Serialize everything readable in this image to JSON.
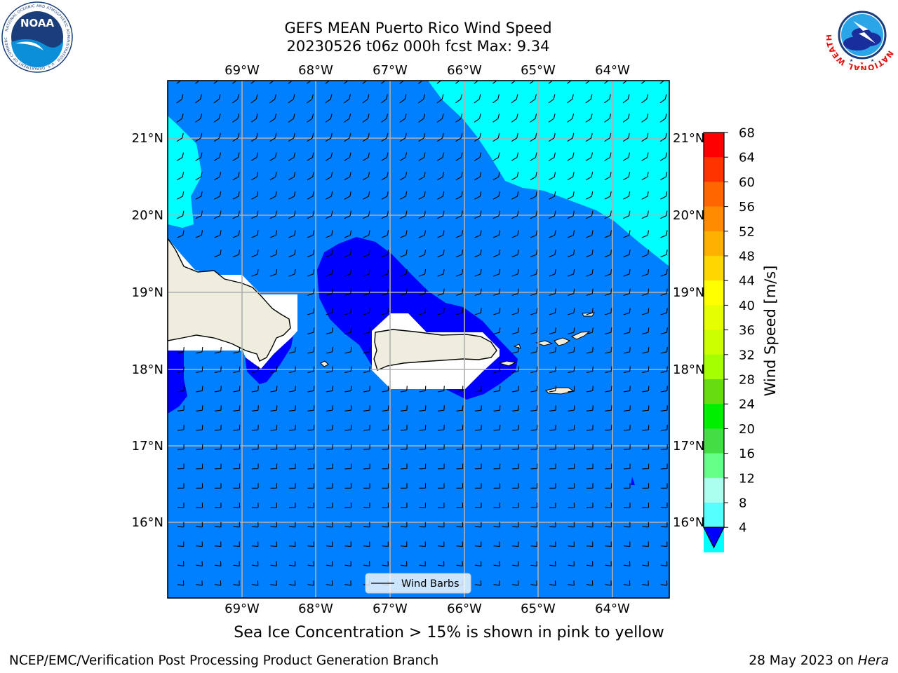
{
  "header": {
    "title_line1": "GEFS MEAN Puerto Rico Wind Speed",
    "title_line2": "20230526 t06z 000h fcst   Max: 9.34"
  },
  "logos": {
    "left": "NOAA",
    "left_ring_text": "NATIONAL OCEANIC AND ATMOSPHERIC ADMINISTRATION · U.S. DEPARTMENT OF COMMERCE",
    "right_ring_text": "NATIONAL WEATHER SERVICE"
  },
  "map": {
    "lon_range": [
      -70.0,
      -63.25
    ],
    "lat_range": [
      15.0,
      21.75
    ],
    "lon_ticks": [
      "69°W",
      "68°W",
      "67°W",
      "66°W",
      "65°W",
      "64°W"
    ],
    "lat_ticks": [
      "21°N",
      "20°N",
      "19°N",
      "18°N",
      "17°N",
      "16°N"
    ],
    "grid": true,
    "legend": {
      "label": "Wind Barbs",
      "placement": "bottom-center"
    }
  },
  "colorbar": {
    "label": "Wind Speed [m/s]",
    "ticks": [
      "68",
      "64",
      "60",
      "56",
      "52",
      "48",
      "44",
      "40",
      "36",
      "32",
      "28",
      "24",
      "20",
      "16",
      "12",
      "8",
      "4"
    ],
    "colors": [
      "#ff0000",
      "#ff3300",
      "#ff6600",
      "#ff8c00",
      "#ffb000",
      "#ffd700",
      "#ffff00",
      "#e6ff00",
      "#ccff00",
      "#a6ff00",
      "#66dd11",
      "#00ee00",
      "#44dd44",
      "#66ff88",
      "#aaffee",
      "#55ffff",
      "#00ffff",
      "#007fff"
    ],
    "underflow_color": "#0000ff"
  },
  "colors": {
    "ocean": "#007fff",
    "low_speed": "#0000ff",
    "higher_speed": "#00ffff",
    "land": "#efeede"
  },
  "captions": {
    "sea_ice": "Sea Ice Concentration > 15% is shown in pink to yellow",
    "footer_left": "NCEP/EMC/Verification Post Processing Product Generation Branch",
    "footer_date": "28 May 2023 on ",
    "footer_host": "Hera"
  }
}
